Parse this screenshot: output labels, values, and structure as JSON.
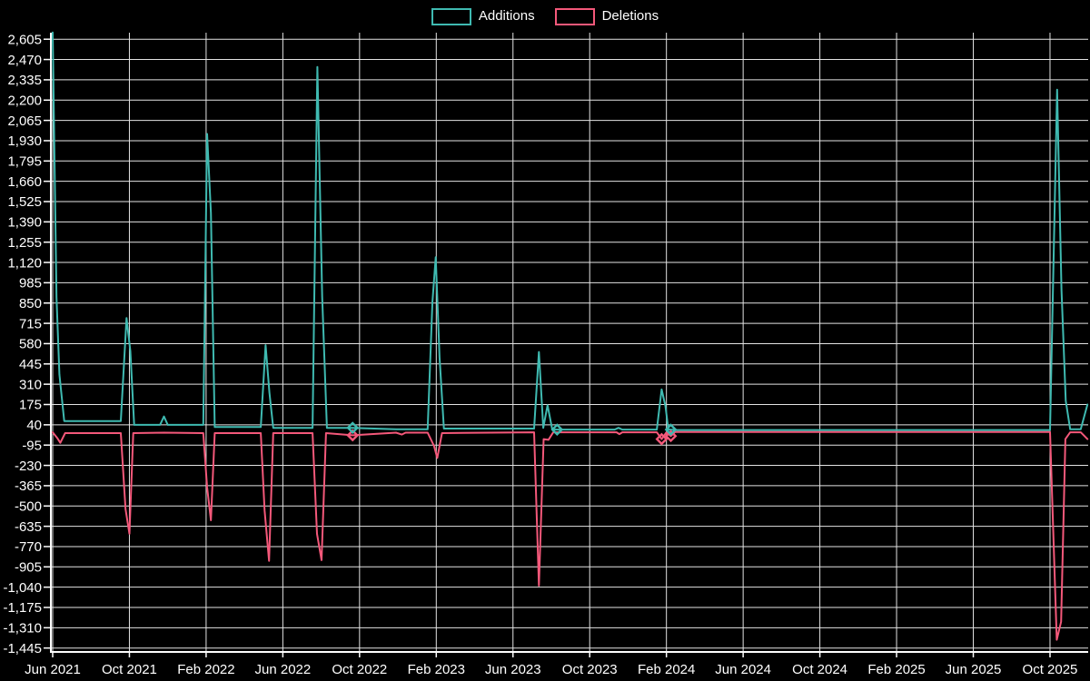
{
  "page": {
    "background": "#000000",
    "grid_color": "#e3e3e3",
    "axis_color": "#fdfdfd",
    "text_color": "#ffffff"
  },
  "legend": {
    "position": "top",
    "items": [
      {
        "label": "Additions",
        "color": "#3fbab1"
      },
      {
        "label": "Deletions",
        "color": "#f4587a"
      }
    ]
  },
  "chart_data": {
    "type": "line",
    "title": "",
    "xlabel": "",
    "ylabel": "",
    "grid": true,
    "legend_position": "top",
    "x_axis": {
      "tick_labels": [
        "Jun 2021",
        "Oct 2021",
        "Feb 2022",
        "Jun 2022",
        "Oct 2022",
        "Feb 2023",
        "Jun 2023",
        "Oct 2023",
        "Feb 2024",
        "Jun 2024",
        "Oct 2024",
        "Feb 2025",
        "Jun 2025",
        "Oct 2025"
      ],
      "months_per_tick": 4,
      "start_month": "Jun 2021",
      "end_month": "Nov 2025"
    },
    "y_axis": {
      "tick_max": 2605,
      "tick_min": -1445,
      "tick_step": 135,
      "tick_labels": [
        "2,605",
        "2,470",
        "2,335",
        "2,200",
        "2,065",
        "1,930",
        "1,795",
        "1,660",
        "1,525",
        "1,390",
        "1,255",
        "1,120",
        "985",
        "850",
        "715",
        "580",
        "445",
        "310",
        "175",
        "40",
        "-95",
        "-230",
        "-365",
        "-500",
        "-635",
        "-770",
        "-905",
        "-1,040",
        "-1,175",
        "-1,310",
        "-1,445"
      ]
    },
    "series": [
      {
        "name": "Additions",
        "color": "#3fbab1",
        "points_unit": "[months_since_jun_2021, value]",
        "points": [
          [
            0,
            2650
          ],
          [
            0.2,
            890
          ],
          [
            0.35,
            375
          ],
          [
            0.6,
            65
          ],
          [
            3.55,
            65
          ],
          [
            3.85,
            750
          ],
          [
            4.05,
            530
          ],
          [
            4.25,
            40
          ],
          [
            5.6,
            40
          ],
          [
            5.8,
            95
          ],
          [
            6.0,
            40
          ],
          [
            7.85,
            40
          ],
          [
            8.05,
            1975
          ],
          [
            8.25,
            1450
          ],
          [
            8.45,
            25
          ],
          [
            10.85,
            25
          ],
          [
            11.1,
            570
          ],
          [
            11.3,
            255
          ],
          [
            11.5,
            20
          ],
          [
            13.55,
            20
          ],
          [
            13.8,
            2420
          ],
          [
            14.05,
            890
          ],
          [
            14.3,
            20
          ],
          [
            15.64,
            20
          ],
          [
            17.9,
            10
          ],
          [
            19.55,
            10
          ],
          [
            19.8,
            860
          ],
          [
            19.97,
            1155
          ],
          [
            20.17,
            490
          ],
          [
            20.4,
            15
          ],
          [
            25.1,
            15
          ],
          [
            25.35,
            525
          ],
          [
            25.58,
            20
          ],
          [
            25.8,
            170
          ],
          [
            26.05,
            8
          ],
          [
            26.3,
            8
          ],
          [
            29.3,
            8
          ],
          [
            29.5,
            20
          ],
          [
            29.7,
            8
          ],
          [
            31.5,
            8
          ],
          [
            31.75,
            275
          ],
          [
            31.95,
            165
          ],
          [
            32.1,
            8
          ],
          [
            32.23,
            8
          ],
          [
            32.45,
            5
          ],
          [
            52.0,
            5
          ],
          [
            52.37,
            2270
          ],
          [
            52.6,
            940
          ],
          [
            52.82,
            200
          ],
          [
            53.05,
            10
          ],
          [
            53.6,
            10
          ],
          [
            53.95,
            175
          ]
        ],
        "markers": [
          [
            15.64,
            20
          ],
          [
            26.3,
            8
          ],
          [
            32.23,
            8
          ]
        ]
      },
      {
        "name": "Deletions",
        "color": "#f4587a",
        "points_unit": "[months_since_jun_2021, value]",
        "points": [
          [
            0,
            -10
          ],
          [
            0.25,
            -50
          ],
          [
            0.4,
            -80
          ],
          [
            0.65,
            -15
          ],
          [
            3.55,
            -15
          ],
          [
            3.8,
            -520
          ],
          [
            4.0,
            -685
          ],
          [
            4.2,
            -15
          ],
          [
            5.8,
            -12
          ],
          [
            7.85,
            -15
          ],
          [
            8.05,
            -375
          ],
          [
            8.25,
            -595
          ],
          [
            8.45,
            -15
          ],
          [
            10.85,
            -15
          ],
          [
            11.05,
            -530
          ],
          [
            11.28,
            -865
          ],
          [
            11.5,
            -15
          ],
          [
            13.55,
            -15
          ],
          [
            13.78,
            -685
          ],
          [
            14.02,
            -860
          ],
          [
            14.25,
            -15
          ],
          [
            15.64,
            -30
          ],
          [
            17.9,
            -12
          ],
          [
            18.2,
            -25
          ],
          [
            18.4,
            -12
          ],
          [
            19.55,
            -12
          ],
          [
            19.88,
            -100
          ],
          [
            20.05,
            -180
          ],
          [
            20.3,
            -15
          ],
          [
            25.1,
            -10
          ],
          [
            25.35,
            -1030
          ],
          [
            25.6,
            -55
          ],
          [
            25.85,
            -60
          ],
          [
            26.1,
            -10
          ],
          [
            29.4,
            -10
          ],
          [
            29.55,
            -22
          ],
          [
            29.7,
            -10
          ],
          [
            31.5,
            -10
          ],
          [
            31.75,
            -55
          ],
          [
            32.0,
            -10
          ],
          [
            32.23,
            -35
          ],
          [
            32.45,
            -8
          ],
          [
            52.0,
            -8
          ],
          [
            52.35,
            -1390
          ],
          [
            52.58,
            -1270
          ],
          [
            52.8,
            -55
          ],
          [
            53.05,
            -10
          ],
          [
            53.6,
            -10
          ],
          [
            53.95,
            -55
          ]
        ],
        "markers": [
          [
            15.64,
            -30
          ],
          [
            31.75,
            -55
          ],
          [
            32.23,
            -35
          ]
        ]
      }
    ]
  }
}
